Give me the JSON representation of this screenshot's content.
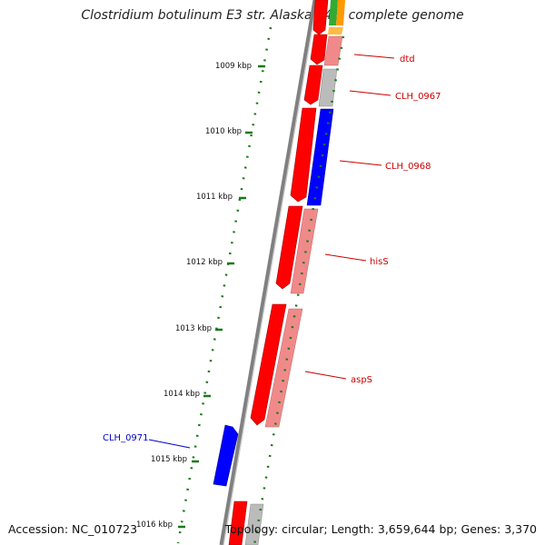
{
  "title": "Clostridium botulinum E3 str. Alaska E43, complete genome",
  "accession_text": "Accession: NC_010723",
  "topology_text": "Topology: circular; Length: 3,659,644 bp; Genes: 3,370",
  "ruler_labels": [
    "1009 kbp",
    "1010 kbp",
    "1011 kbp",
    "1012 kbp",
    "1013 kbp",
    "1014 kbp",
    "1015 kbp",
    "1016 kbp"
  ],
  "gene_labels": [
    {
      "text": "dtd",
      "color": "#cc0000"
    },
    {
      "text": "CLH_0967",
      "color": "#cc0000"
    },
    {
      "text": "CLH_0968",
      "color": "#cc0000"
    },
    {
      "text": "hisS",
      "color": "#cc0000"
    },
    {
      "text": "aspS",
      "color": "#cc0000"
    },
    {
      "text": "CLH_0971",
      "color": "#0000cc"
    }
  ],
  "colors": {
    "forward_cds": "#ff0000",
    "reverse_cds": "#0000ff",
    "cog_light_red": "#f08a8a",
    "cog_grey": "#bbbbbb",
    "cog_blue": "#0000ff",
    "backbone": "#808080",
    "tick_green": "#1a7a1a"
  }
}
